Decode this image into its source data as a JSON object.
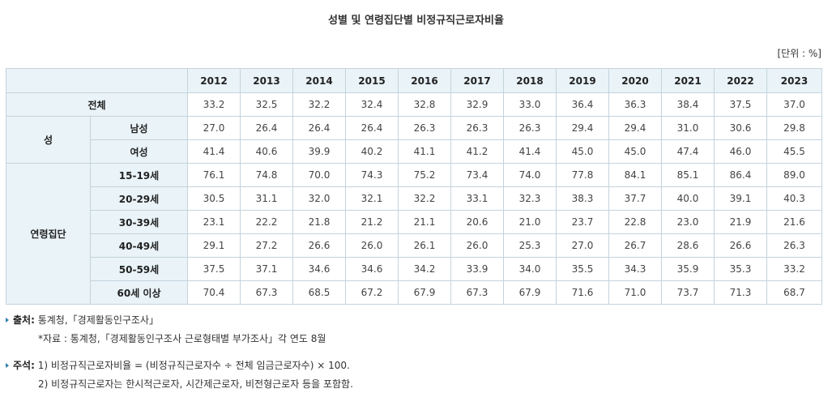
{
  "title": "성별 및 연령집단별 비정규직근로자비율",
  "unit": "[단위 : %]",
  "table": {
    "years": [
      "2012",
      "2013",
      "2014",
      "2015",
      "2016",
      "2017",
      "2018",
      "2019",
      "2020",
      "2021",
      "2022",
      "2023"
    ],
    "total_label": "전체",
    "total_values": [
      "33.2",
      "32.5",
      "32.2",
      "32.4",
      "32.8",
      "32.9",
      "33.0",
      "36.4",
      "36.3",
      "38.4",
      "37.5",
      "37.0"
    ],
    "groups": [
      {
        "label": "성",
        "rows": [
          {
            "label": "남성",
            "values": [
              "27.0",
              "26.4",
              "26.4",
              "26.4",
              "26.3",
              "26.3",
              "26.3",
              "29.4",
              "29.4",
              "31.0",
              "30.6",
              "29.8"
            ]
          },
          {
            "label": "여성",
            "values": [
              "41.4",
              "40.6",
              "39.9",
              "40.2",
              "41.1",
              "41.2",
              "41.4",
              "45.0",
              "45.0",
              "47.4",
              "46.0",
              "45.5"
            ]
          }
        ]
      },
      {
        "label": "연령집단",
        "rows": [
          {
            "label": "15-19세",
            "values": [
              "76.1",
              "74.8",
              "70.0",
              "74.3",
              "75.2",
              "73.4",
              "74.0",
              "77.8",
              "84.1",
              "85.1",
              "86.4",
              "89.0"
            ]
          },
          {
            "label": "20-29세",
            "values": [
              "30.5",
              "31.1",
              "32.0",
              "32.1",
              "32.2",
              "33.1",
              "32.3",
              "38.3",
              "37.7",
              "40.0",
              "39.1",
              "40.3"
            ]
          },
          {
            "label": "30-39세",
            "values": [
              "23.1",
              "22.2",
              "21.8",
              "21.2",
              "21.1",
              "20.6",
              "21.0",
              "23.7",
              "22.8",
              "23.0",
              "21.9",
              "21.6"
            ]
          },
          {
            "label": "40-49세",
            "values": [
              "29.1",
              "27.2",
              "26.6",
              "26.0",
              "26.1",
              "26.0",
              "25.3",
              "27.0",
              "26.7",
              "28.6",
              "26.6",
              "26.3"
            ]
          },
          {
            "label": "50-59세",
            "values": [
              "37.5",
              "37.1",
              "34.6",
              "34.6",
              "34.2",
              "33.9",
              "34.0",
              "35.5",
              "34.3",
              "35.9",
              "35.3",
              "33.2"
            ]
          },
          {
            "label": "60세 이상",
            "values": [
              "70.4",
              "67.3",
              "68.5",
              "67.2",
              "67.9",
              "67.3",
              "67.9",
              "71.6",
              "71.0",
              "73.7",
              "71.3",
              "68.7"
            ]
          }
        ]
      }
    ]
  },
  "notes": {
    "source_label": "출처:",
    "source_text": "통계청,「경제활동인구조사」",
    "source_detail": "*자료 : 통계청,「경제활동인구조사 근로형태별 부가조사」각 연도 8월",
    "remark_label": "주석:",
    "remark_1": "1) 비정규직근로자비율 = (비정규직근로자수 ÷ 전체 임금근로자수) × 100.",
    "remark_2": "2) 비정규직근로자는 한시적근로자, 시간제근로자, 비전형근로자 등을 포함함."
  }
}
